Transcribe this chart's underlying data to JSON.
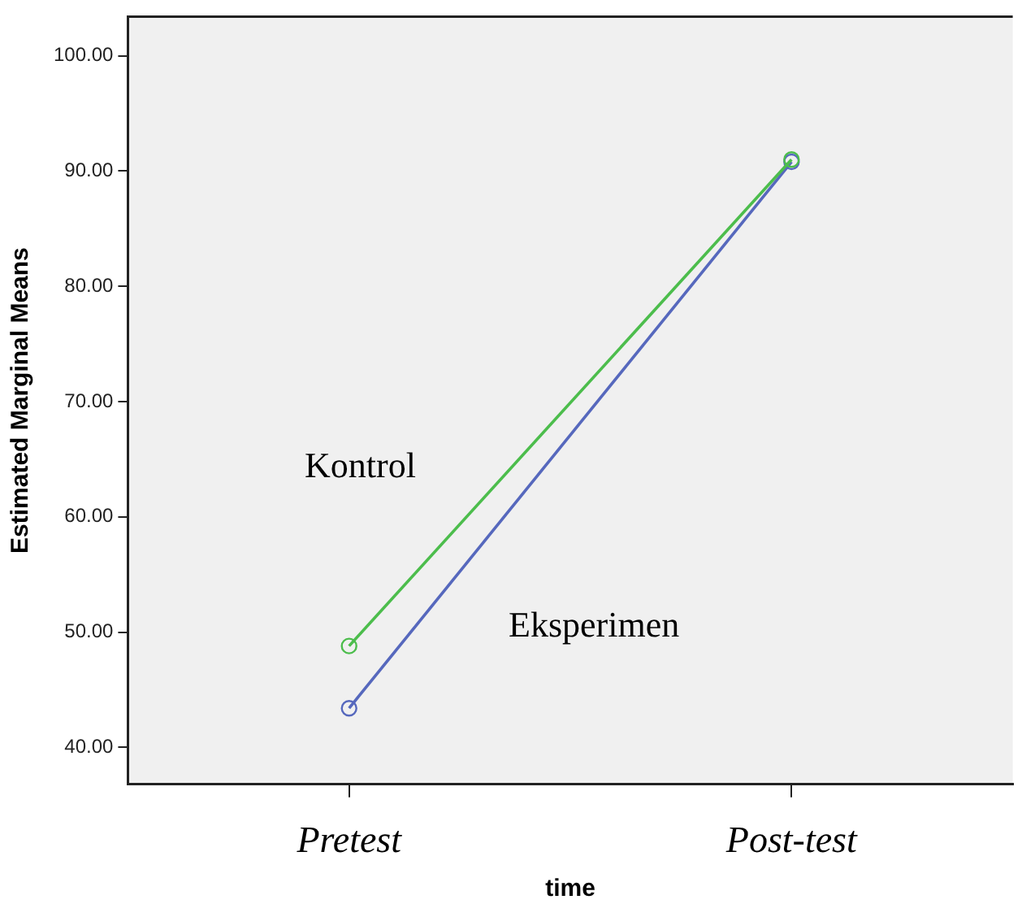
{
  "chart_data": {
    "type": "line",
    "xlabel": "time",
    "ylabel": "Estimated Marginal Means",
    "categories": [
      "Pretest",
      "Post-test"
    ],
    "series": [
      {
        "name": "Kontrol",
        "color": "#4cbd4c",
        "values": [
          48.8,
          91.0
        ]
      },
      {
        "name": "Eksperimen",
        "color": "#5668bd",
        "values": [
          43.4,
          90.8
        ]
      }
    ],
    "ylim": [
      36.8,
      103.4
    ],
    "yticks": [
      {
        "value": 40,
        "label": "40.00"
      },
      {
        "value": 50,
        "label": "50.00"
      },
      {
        "value": 60,
        "label": "60.00"
      },
      {
        "value": 70,
        "label": "70.00"
      },
      {
        "value": 80,
        "label": "80.00"
      },
      {
        "value": 90,
        "label": "90.00"
      },
      {
        "value": 100,
        "label": "100.00"
      }
    ],
    "marker": "circle",
    "line_style": "solid",
    "grid": false,
    "legend": false
  }
}
